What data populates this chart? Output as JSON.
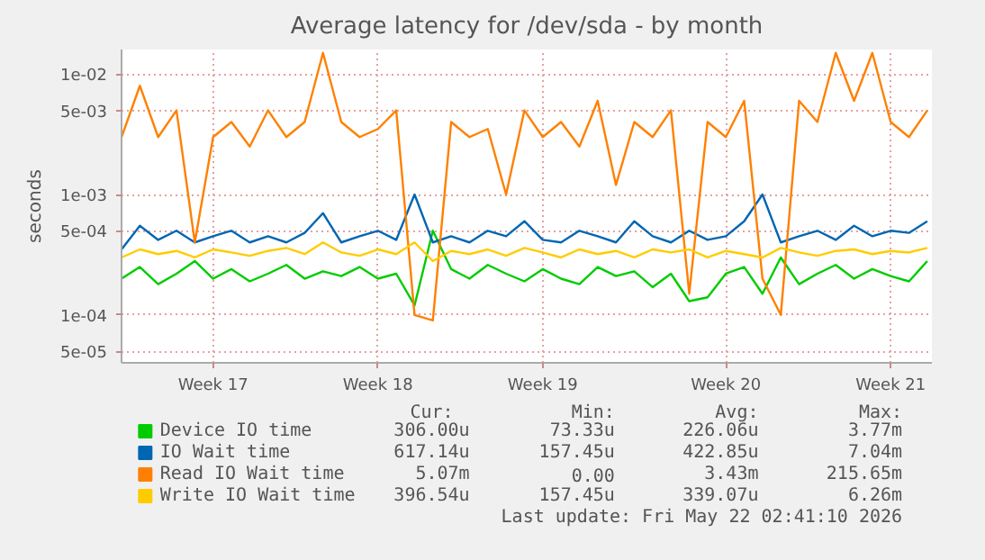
{
  "chart_data": {
    "type": "line",
    "title": "Average latency for /dev/sda - by month",
    "ylabel": "seconds",
    "categories": [
      null,
      null,
      null,
      null,
      null,
      "Week 17",
      null,
      null,
      null,
      null,
      null,
      null,
      null,
      null,
      "Week 18",
      null,
      null,
      null,
      null,
      null,
      null,
      null,
      null,
      "Week 19",
      null,
      null,
      null,
      null,
      null,
      null,
      null,
      null,
      null,
      "Week 20",
      null,
      null,
      null,
      null,
      null,
      null,
      null,
      null,
      "Week 21",
      null,
      null
    ],
    "ylim": [
      4e-05,
      0.016
    ],
    "log": true,
    "yticks": [
      {
        "value": 5e-05,
        "label": "5e-05"
      },
      {
        "value": 0.0001,
        "label": "1e-04"
      },
      {
        "value": 0.0005,
        "label": "5e-04"
      },
      {
        "value": 0.001,
        "label": "1e-03"
      },
      {
        "value": 0.005,
        "label": "5e-03"
      },
      {
        "value": 0.01,
        "label": "1e-02"
      }
    ],
    "grid": true,
    "legend": "bottom",
    "line_style": "solid",
    "marker": "none",
    "series": [
      {
        "name": "Device IO time",
        "color": "#00cc00",
        "values": [
          0.0002,
          0.00025,
          0.00018,
          0.00022,
          0.00028,
          0.0002,
          0.00024,
          0.00019,
          0.00022,
          0.00026,
          0.0002,
          0.00023,
          0.00021,
          0.00025,
          0.0002,
          0.00022,
          0.00012,
          0.0005,
          0.00024,
          0.0002,
          0.00026,
          0.00022,
          0.00019,
          0.00024,
          0.0002,
          0.00018,
          0.00025,
          0.00021,
          0.00023,
          0.00017,
          0.00022,
          0.00013,
          0.00014,
          0.00022,
          0.00025,
          0.00015,
          0.0003,
          0.00018,
          0.00022,
          0.00026,
          0.0002,
          0.00024,
          0.00021,
          0.00019,
          0.00028
        ]
      },
      {
        "name": "IO Wait time",
        "color": "#0066b3",
        "values": [
          0.00035,
          0.00055,
          0.00042,
          0.0005,
          0.0004,
          0.00045,
          0.0005,
          0.0004,
          0.00045,
          0.0004,
          0.00048,
          0.0007,
          0.0004,
          0.00045,
          0.0005,
          0.00042,
          0.001,
          0.0004,
          0.00045,
          0.0004,
          0.0005,
          0.00045,
          0.0006,
          0.00042,
          0.0004,
          0.0005,
          0.00045,
          0.0004,
          0.0006,
          0.00045,
          0.0004,
          0.0005,
          0.00042,
          0.00045,
          0.0006,
          0.001,
          0.0004,
          0.00045,
          0.0005,
          0.00042,
          0.00055,
          0.00045,
          0.0005,
          0.00048,
          0.0006
        ]
      },
      {
        "name": "Read IO Wait time",
        "color": "#ff8000",
        "values": [
          0.003,
          0.008,
          0.003,
          0.005,
          0.0004,
          0.003,
          0.004,
          0.0025,
          0.005,
          0.003,
          0.004,
          0.015,
          0.004,
          0.003,
          0.0035,
          0.005,
          0.0001,
          9e-05,
          0.004,
          0.003,
          0.0035,
          0.001,
          0.005,
          0.003,
          0.004,
          0.0025,
          0.006,
          0.0012,
          0.004,
          0.003,
          0.005,
          0.00015,
          0.004,
          0.003,
          0.006,
          0.0002,
          0.0001,
          0.006,
          0.004,
          0.015,
          0.006,
          0.015,
          0.004,
          0.003,
          0.005
        ]
      },
      {
        "name": "Write IO Wait time",
        "color": "#ffcc00",
        "values": [
          0.0003,
          0.00035,
          0.00032,
          0.00034,
          0.0003,
          0.00035,
          0.00033,
          0.00031,
          0.00034,
          0.00036,
          0.00032,
          0.0004,
          0.00033,
          0.00031,
          0.00035,
          0.00032,
          0.0004,
          0.00028,
          0.00034,
          0.00032,
          0.00035,
          0.00031,
          0.00036,
          0.00033,
          0.0003,
          0.00035,
          0.00032,
          0.00034,
          0.0003,
          0.00035,
          0.00033,
          0.00035,
          0.0003,
          0.00034,
          0.00032,
          0.0003,
          0.00036,
          0.00033,
          0.00031,
          0.00034,
          0.00035,
          0.00032,
          0.00034,
          0.00033,
          0.00036
        ]
      }
    ],
    "annotations": [
      "Cur:",
      "Min:",
      "Avg:",
      "Max:",
      "306.00u",
      "73.33u",
      "226.06u",
      "3.77m",
      "617.14u",
      "157.45u",
      "422.85u",
      "7.04m",
      "5.07m",
      "0.00",
      "3.43m",
      "215.65m",
      "396.54u",
      "157.45u",
      "339.07u",
      "6.26m",
      "Last update: Fri May 22 02:41:10 2026"
    ]
  }
}
